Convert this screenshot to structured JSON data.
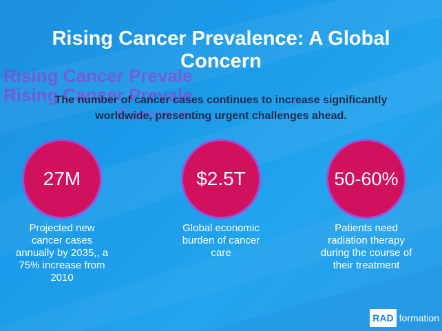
{
  "header": {
    "title": "Rising Cancer Prevalence: A Global Concern",
    "subtitle": "The number of cancer cases continues to increase significantly worldwide, presenting urgent challenges ahead."
  },
  "stats": [
    {
      "value": "27M",
      "description": "Projected new cancer cases annually by 2035,, a 75% increase from 2010"
    },
    {
      "value": "$2.5T",
      "description": "Global economic burden of cancer care"
    },
    {
      "value": "50-60%",
      "description": "Patients need radiation therapy during the course of their treatment"
    }
  ],
  "logo": {
    "box_text": "RAD",
    "word": "formation"
  },
  "colors": {
    "background": "#1f96e4",
    "circle": "#d0115e",
    "subtitle": "#1d2a4a"
  }
}
